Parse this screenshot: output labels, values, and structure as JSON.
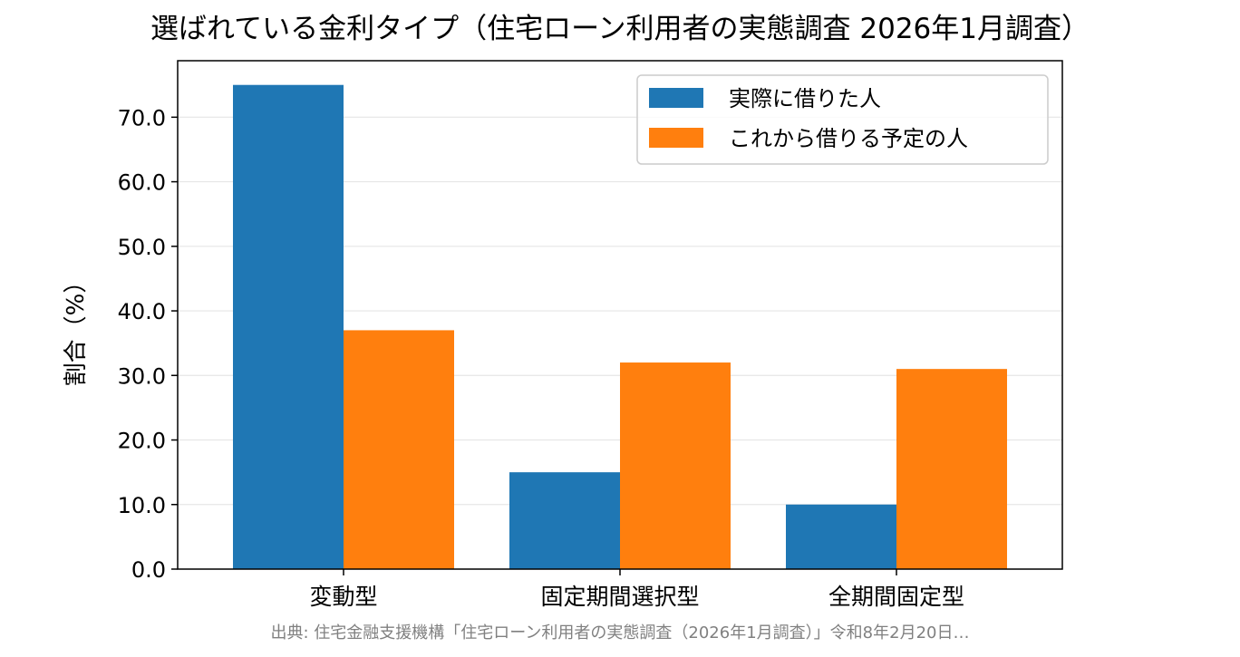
{
  "chart_data": {
    "type": "bar",
    "title": "選ばれている金利タイプ（住宅ローン利用者の実態調査 2026年1月調査）",
    "xlabel": "",
    "ylabel": "割合（%）",
    "categories": [
      "変動型",
      "固定期間選択型",
      "全期間固定型"
    ],
    "series": [
      {
        "name": "実際に借りた人",
        "values": [
          75.0,
          15.0,
          10.0
        ],
        "color": "#1f77b4"
      },
      {
        "name": "これから借りる予定の人",
        "values": [
          37.0,
          32.0,
          31.0
        ],
        "color": "#ff7f0e"
      }
    ],
    "ylim": [
      0,
      78.75
    ],
    "yticks": [
      0,
      10,
      20,
      30,
      40,
      50,
      60,
      70
    ],
    "ytick_labels": [
      "0.0",
      "10.0",
      "20.0",
      "30.0",
      "40.0",
      "50.0",
      "60.0",
      "70.0"
    ],
    "grid": "y",
    "legend_position": "top-right"
  },
  "source_note": "出典: 住宅金融支援機構「住宅ローン利用者の実態調査（2026年1月調査）」令和8年2月20日…"
}
